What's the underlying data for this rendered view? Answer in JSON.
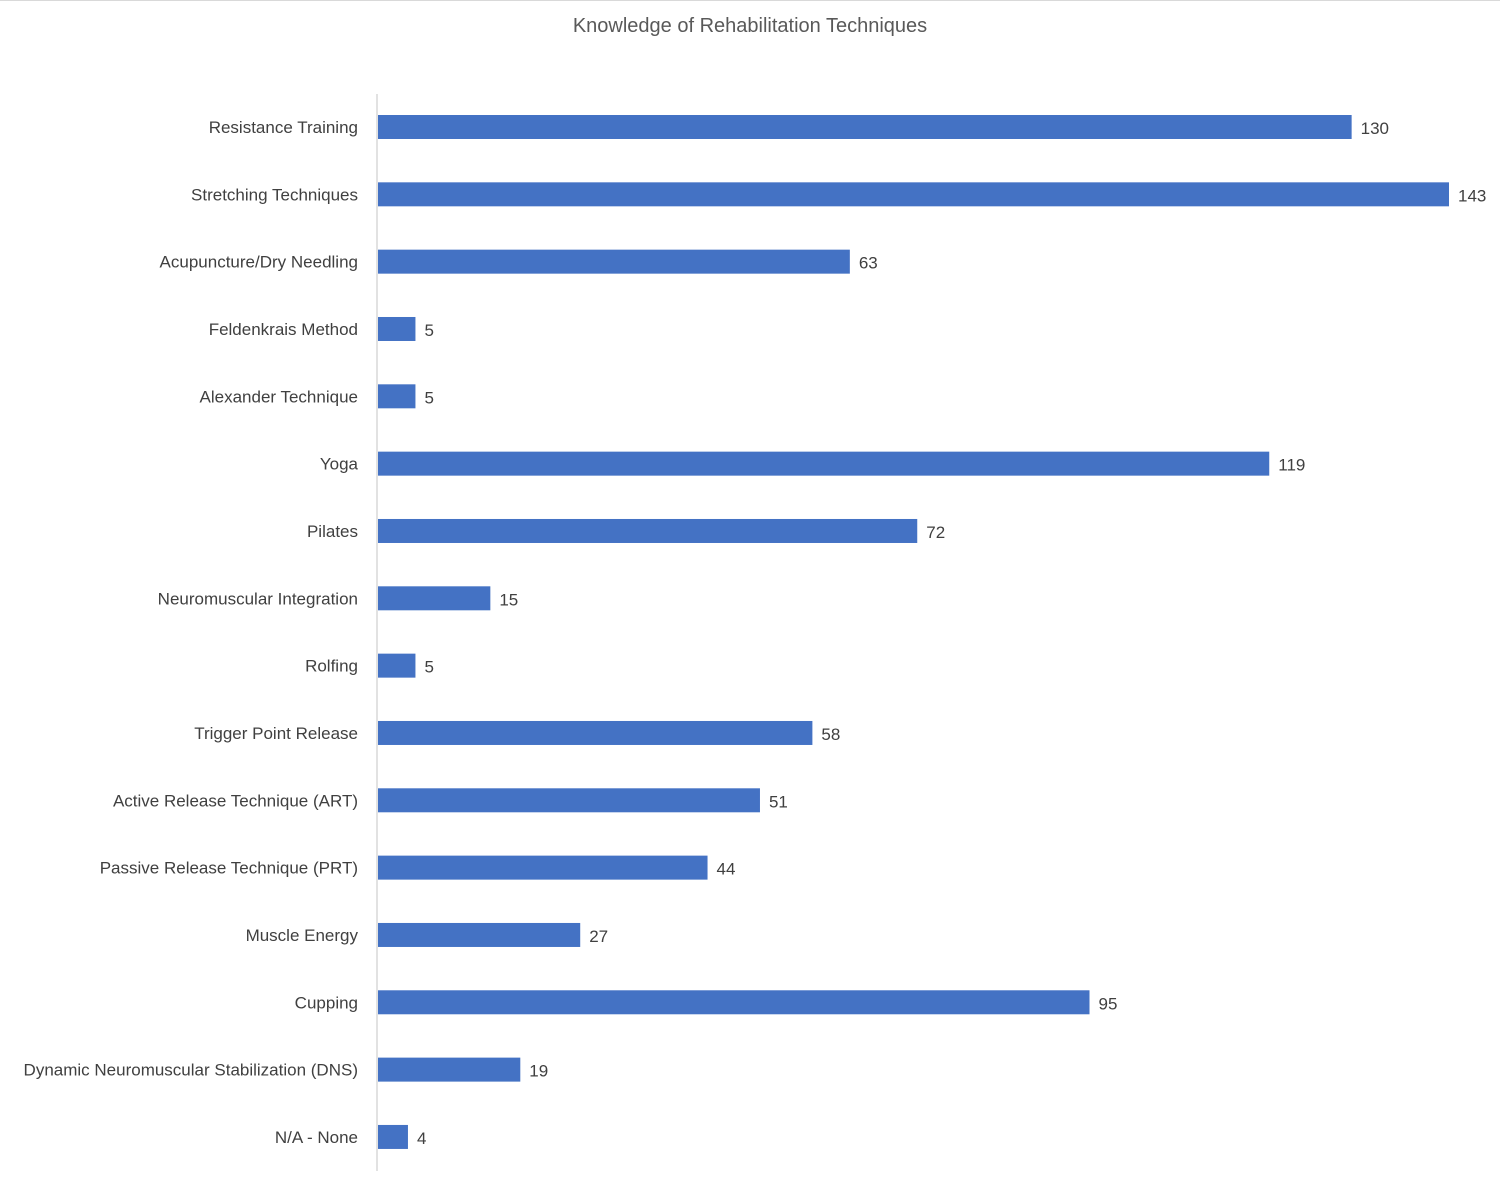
{
  "chart_data": {
    "type": "bar",
    "orientation": "horizontal",
    "title": "Knowledge of Rehabilitation Techniques",
    "xlabel": "",
    "ylabel": "",
    "categories": [
      "Resistance Training",
      "Stretching Techniques",
      "Acupuncture/Dry Needling",
      "Feldenkrais Method",
      "Alexander Technique",
      "Yoga",
      "Pilates",
      "Neuromuscular Integration",
      "Rolfing",
      "Trigger Point Release",
      "Active Release Technique (ART)",
      "Passive Release Technique (PRT)",
      "Muscle Energy",
      "Cupping",
      "Dynamic Neuromuscular Stabilization (DNS)",
      "N/A - None"
    ],
    "values": [
      130,
      143,
      63,
      5,
      5,
      119,
      72,
      15,
      5,
      58,
      51,
      44,
      27,
      95,
      19,
      4
    ],
    "xlim": [
      0,
      143
    ],
    "grid": false,
    "legend": "none",
    "data_labels": true,
    "bar_color": "#4472C4"
  }
}
